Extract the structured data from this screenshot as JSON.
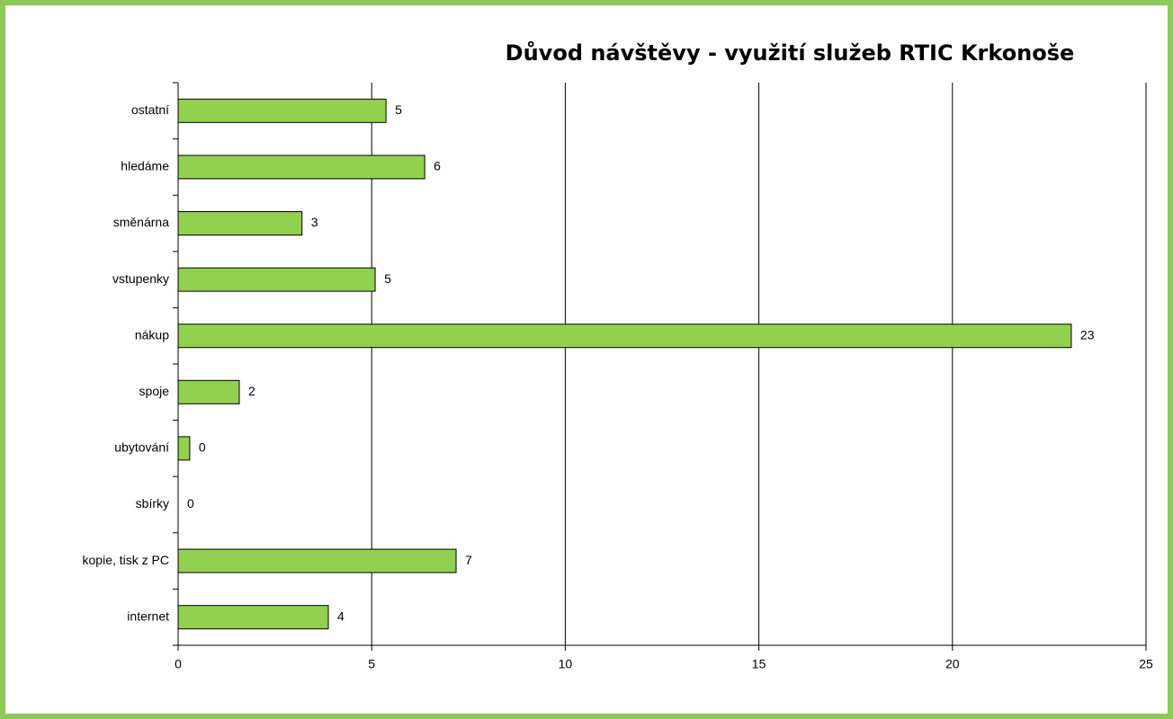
{
  "chart_data": {
    "type": "barh",
    "title": "Důvod návštěvy - využití služeb RTIC Krkonoše",
    "categories": [
      "ostatní",
      "hledáme",
      "směnárna",
      "vstupenky",
      "nákup",
      "spoje",
      "ubytování",
      "sbírky",
      "kopie, tisk z PC",
      "internet"
    ],
    "values": [
      5.37,
      6.37,
      3.2,
      5.09,
      23.07,
      1.58,
      0.3,
      0,
      7.18,
      3.88
    ],
    "value_labels": [
      "5",
      "6",
      "3",
      "5",
      "23",
      "2",
      "0",
      "0",
      "7",
      "4"
    ],
    "color": "#92d050",
    "xlim": [
      0,
      25
    ],
    "xticks": [
      0,
      5,
      10,
      15,
      20,
      25
    ],
    "grid": true
  }
}
